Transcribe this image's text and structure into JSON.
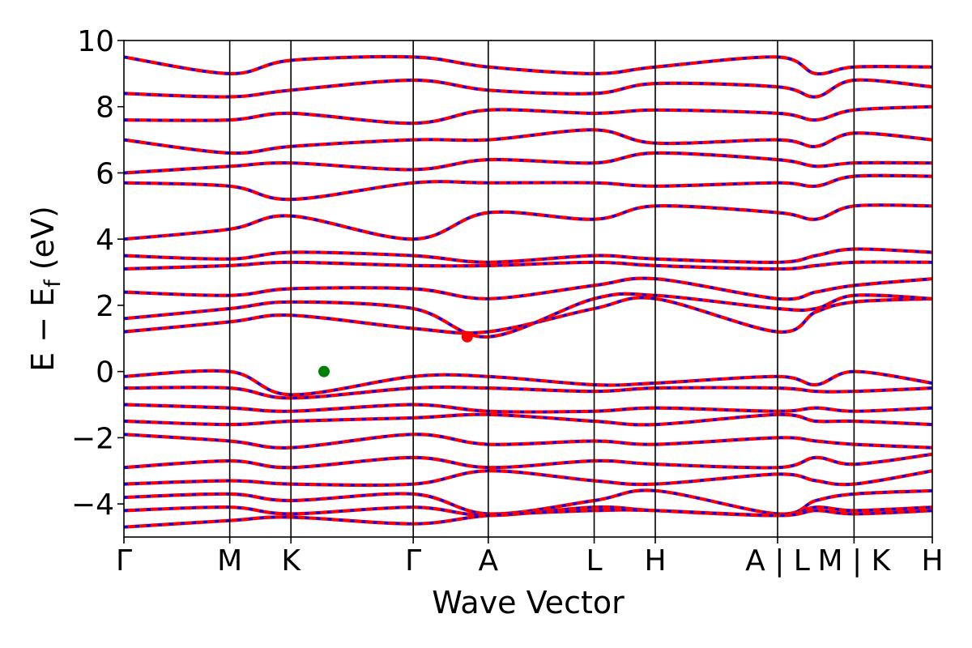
{
  "chart_data": {
    "type": "line",
    "title": "",
    "xlabel": "Wave Vector",
    "ylabel": "E − E",
    "ylabel_sub": "f",
    "ylabel_unit": " (eV)",
    "ylim": [
      -5,
      10
    ],
    "yticks": [
      10,
      8,
      6,
      4,
      2,
      0,
      -2,
      -4
    ],
    "ytick_labels": [
      "10",
      "8",
      "6",
      "4",
      "2",
      "0",
      "−2",
      "−4"
    ],
    "xlim": [
      0,
      1
    ],
    "kpoints": [
      {
        "label": "Γ",
        "x": 0.0
      },
      {
        "label": "M",
        "x": 0.1309
      },
      {
        "label": "K",
        "x": 0.2066
      },
      {
        "label": "Γ",
        "x": 0.3579
      },
      {
        "label": "A",
        "x": 0.4507
      },
      {
        "label": "L",
        "x": 0.5817
      },
      {
        "label": "H",
        "x": 0.6573
      },
      {
        "label": "A | L",
        "x": 0.8086
      },
      {
        "label": "M | K",
        "x": 0.9032
      },
      {
        "label": "H",
        "x": 1.0
      }
    ],
    "grid": false,
    "band_colors": {
      "spin_up": "#ff0000",
      "spin_down": "#0000ff"
    },
    "markers": [
      {
        "name": "VBM",
        "x": 0.2475,
        "y": 0.0,
        "color": "#008000"
      },
      {
        "name": "CBM",
        "x": 0.4247,
        "y": 1.05,
        "color": "#ff0000"
      }
    ],
    "bands_sample": [
      {
        "name": "cb1",
        "values": [
          1.2,
          1.5,
          1.7,
          1.3,
          1.2,
          1.9,
          2.2,
          1.2,
          1.8,
          2.1,
          2.2
        ]
      },
      {
        "name": "cb2",
        "values": [
          1.6,
          1.9,
          2.1,
          1.9,
          1.05,
          2.2,
          2.3,
          1.9,
          1.9,
          2.3,
          2.2
        ]
      },
      {
        "name": "cb3",
        "values": [
          2.4,
          2.3,
          2.5,
          2.5,
          2.2,
          2.6,
          2.8,
          2.2,
          2.4,
          2.6,
          2.8
        ]
      },
      {
        "name": "cb4",
        "values": [
          3.1,
          3.2,
          3.3,
          3.2,
          3.2,
          3.3,
          3.2,
          3.1,
          3.2,
          3.3,
          3.3
        ]
      },
      {
        "name": "cb5",
        "values": [
          3.5,
          3.4,
          3.6,
          3.5,
          3.3,
          3.5,
          3.4,
          3.3,
          3.5,
          3.7,
          3.6
        ]
      },
      {
        "name": "cb6",
        "values": [
          4.0,
          4.3,
          4.7,
          4.0,
          4.8,
          4.6,
          5.0,
          4.8,
          4.6,
          5.0,
          5.0
        ]
      },
      {
        "name": "cb7",
        "values": [
          5.7,
          5.6,
          5.2,
          5.7,
          5.7,
          5.7,
          5.6,
          5.7,
          5.6,
          5.9,
          5.9
        ]
      },
      {
        "name": "cb8",
        "values": [
          6.0,
          6.2,
          6.3,
          6.1,
          6.4,
          6.3,
          6.6,
          6.4,
          6.2,
          6.3,
          6.3
        ]
      },
      {
        "name": "cb9",
        "values": [
          7.0,
          6.6,
          6.8,
          7.0,
          7.0,
          7.3,
          6.9,
          7.0,
          6.8,
          7.2,
          7.0
        ]
      },
      {
        "name": "cb10",
        "values": [
          7.6,
          7.6,
          7.8,
          7.5,
          7.9,
          7.8,
          7.9,
          7.8,
          7.6,
          7.9,
          8.0
        ]
      },
      {
        "name": "cb11",
        "values": [
          8.4,
          8.3,
          8.5,
          8.8,
          8.5,
          8.4,
          8.7,
          8.6,
          8.3,
          8.8,
          8.6
        ]
      },
      {
        "name": "cb12",
        "values": [
          9.5,
          9.0,
          9.4,
          9.5,
          9.2,
          9.0,
          9.2,
          9.5,
          9.0,
          9.2,
          9.2
        ]
      },
      {
        "name": "vb1",
        "values": [
          -0.15,
          0.0,
          -0.7,
          -0.15,
          -0.15,
          -0.4,
          -0.35,
          -0.15,
          -0.4,
          0.0,
          -0.35
        ]
      },
      {
        "name": "vb2",
        "values": [
          -0.5,
          -0.5,
          -0.8,
          -0.5,
          -0.5,
          -0.6,
          -0.5,
          -0.5,
          -0.6,
          -0.6,
          -0.5
        ]
      },
      {
        "name": "vb3",
        "values": [
          -1.0,
          -1.1,
          -1.2,
          -1.0,
          -1.2,
          -1.2,
          -1.1,
          -1.2,
          -1.1,
          -1.2,
          -1.1
        ]
      },
      {
        "name": "vb4",
        "values": [
          -1.5,
          -1.6,
          -1.5,
          -1.4,
          -1.3,
          -1.5,
          -1.6,
          -1.3,
          -1.5,
          -1.5,
          -1.6
        ]
      },
      {
        "name": "vb5",
        "values": [
          -1.9,
          -2.1,
          -2.3,
          -1.9,
          -2.2,
          -2.1,
          -2.2,
          -2.0,
          -2.1,
          -2.2,
          -2.3
        ]
      },
      {
        "name": "vb6",
        "values": [
          -2.9,
          -2.7,
          -2.9,
          -2.6,
          -2.9,
          -2.7,
          -2.8,
          -2.9,
          -2.6,
          -2.8,
          -2.5
        ]
      },
      {
        "name": "vb7",
        "values": [
          -3.4,
          -3.3,
          -3.4,
          -3.4,
          -3.0,
          -3.3,
          -3.4,
          -3.1,
          -3.3,
          -3.4,
          -3.0
        ]
      },
      {
        "name": "vb8",
        "values": [
          -3.8,
          -3.7,
          -3.9,
          -3.7,
          -4.3,
          -3.9,
          -3.6,
          -4.3,
          -3.9,
          -3.7,
          -3.6
        ]
      },
      {
        "name": "vb9",
        "values": [
          -4.2,
          -4.1,
          -4.3,
          -4.1,
          -4.35,
          -4.1,
          -4.2,
          -4.35,
          -4.1,
          -4.2,
          -4.1
        ]
      },
      {
        "name": "vb10",
        "values": [
          -4.7,
          -4.5,
          -4.4,
          -4.6,
          -4.35,
          -4.2,
          -4.2,
          -4.35,
          -4.2,
          -4.3,
          -4.2
        ]
      }
    ],
    "bands_sample_x": [
      0.0,
      0.1309,
      0.2066,
      0.3579,
      0.4507,
      0.5817,
      0.6573,
      0.8086,
      0.8559,
      0.9032,
      1.0
    ]
  }
}
